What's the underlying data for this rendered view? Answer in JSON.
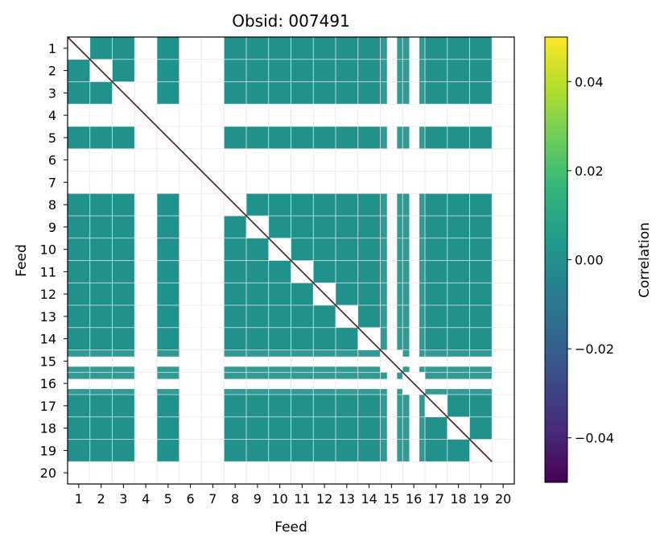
{
  "chart_data": {
    "type": "heatmap",
    "title": "Obsid: 007491",
    "xlabel": "Feed",
    "ylabel": "Feed",
    "feeds": [
      1,
      2,
      3,
      4,
      5,
      6,
      7,
      8,
      9,
      10,
      11,
      12,
      13,
      14,
      15,
      16,
      17,
      18,
      19,
      20
    ],
    "x_tick_labels": [
      "1",
      "2",
      "3",
      "4",
      "5",
      "6",
      "7",
      "8",
      "9",
      "10",
      "11",
      "12",
      "13",
      "14",
      "15",
      "16",
      "17",
      "18",
      "19",
      "20"
    ],
    "y_tick_labels": [
      "1",
      "2",
      "3",
      "4",
      "5",
      "6",
      "7",
      "8",
      "9",
      "10",
      "11",
      "12",
      "13",
      "14",
      "15",
      "16",
      "17",
      "18",
      "19",
      "20"
    ],
    "missing_feeds": [
      4,
      6,
      7,
      20
    ],
    "partial_feeds": [
      15,
      16
    ],
    "off_diagonal_value": 0.0,
    "grid": true,
    "colorbar": {
      "label": "Correlation",
      "colormap": "viridis",
      "vmin": -0.05,
      "vmax": 0.05,
      "ticks": [
        0.04,
        0.02,
        0.0,
        -0.02,
        -0.04
      ],
      "tick_labels": [
        "0.04",
        "0.02",
        "0.00",
        "−0.02",
        "−0.04"
      ]
    },
    "colors": {
      "zero_value": "#21918c",
      "diagonal_line": "#b03030",
      "grid": "#e6e6e6",
      "masked": "#ffffff"
    }
  }
}
